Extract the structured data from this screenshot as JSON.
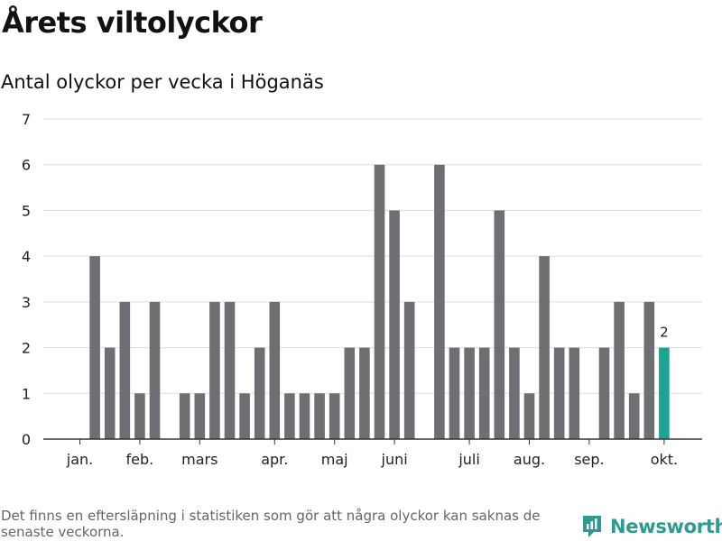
{
  "title": "Årets viltolyckor",
  "subtitle": "Antal olyckor per vecka i Höganäs",
  "footnote": "Det finns en eftersläpning i statistiken som gör att några olyckor kan saknas de senaste veckorna.",
  "brand": {
    "name": "Newsworthy",
    "icon": "newsworthy-logo-icon",
    "color": "#2e9a91"
  },
  "chart_data": {
    "type": "bar",
    "title": "Årets viltolyckor",
    "subtitle": "Antal olyckor per vecka i Höganäs",
    "x": [
      1,
      2,
      3,
      4,
      5,
      6,
      7,
      8,
      9,
      10,
      11,
      12,
      13,
      14,
      15,
      16,
      17,
      18,
      19,
      20,
      21,
      22,
      23,
      24,
      25,
      26,
      27,
      28,
      29,
      30,
      31,
      32,
      33,
      34,
      35,
      36,
      37,
      38,
      39,
      40
    ],
    "values": [
      0,
      4,
      2,
      3,
      1,
      3,
      0,
      1,
      1,
      3,
      3,
      1,
      2,
      3,
      1,
      1,
      1,
      1,
      2,
      2,
      6,
      5,
      3,
      0,
      6,
      2,
      2,
      2,
      5,
      2,
      1,
      4,
      2,
      2,
      0,
      2,
      3,
      1,
      3,
      2
    ],
    "ylim": [
      0,
      7
    ],
    "yticks": [
      0,
      1,
      2,
      3,
      4,
      5,
      6,
      7
    ],
    "month_ticks": [
      {
        "label": "jan.",
        "week": 1
      },
      {
        "label": "feb.",
        "week": 5
      },
      {
        "label": "mars",
        "week": 9
      },
      {
        "label": "apr.",
        "week": 14
      },
      {
        "label": "maj",
        "week": 18
      },
      {
        "label": "juni",
        "week": 22
      },
      {
        "label": "juli",
        "week": 27
      },
      {
        "label": "aug.",
        "week": 31
      },
      {
        "label": "sep.",
        "week": 35
      },
      {
        "label": "okt.",
        "week": 40
      }
    ],
    "bar_color": "#6f6e72",
    "highlight_color": "#1fa391",
    "highlight_index": 39,
    "highlight_label": "2",
    "grid": true
  }
}
